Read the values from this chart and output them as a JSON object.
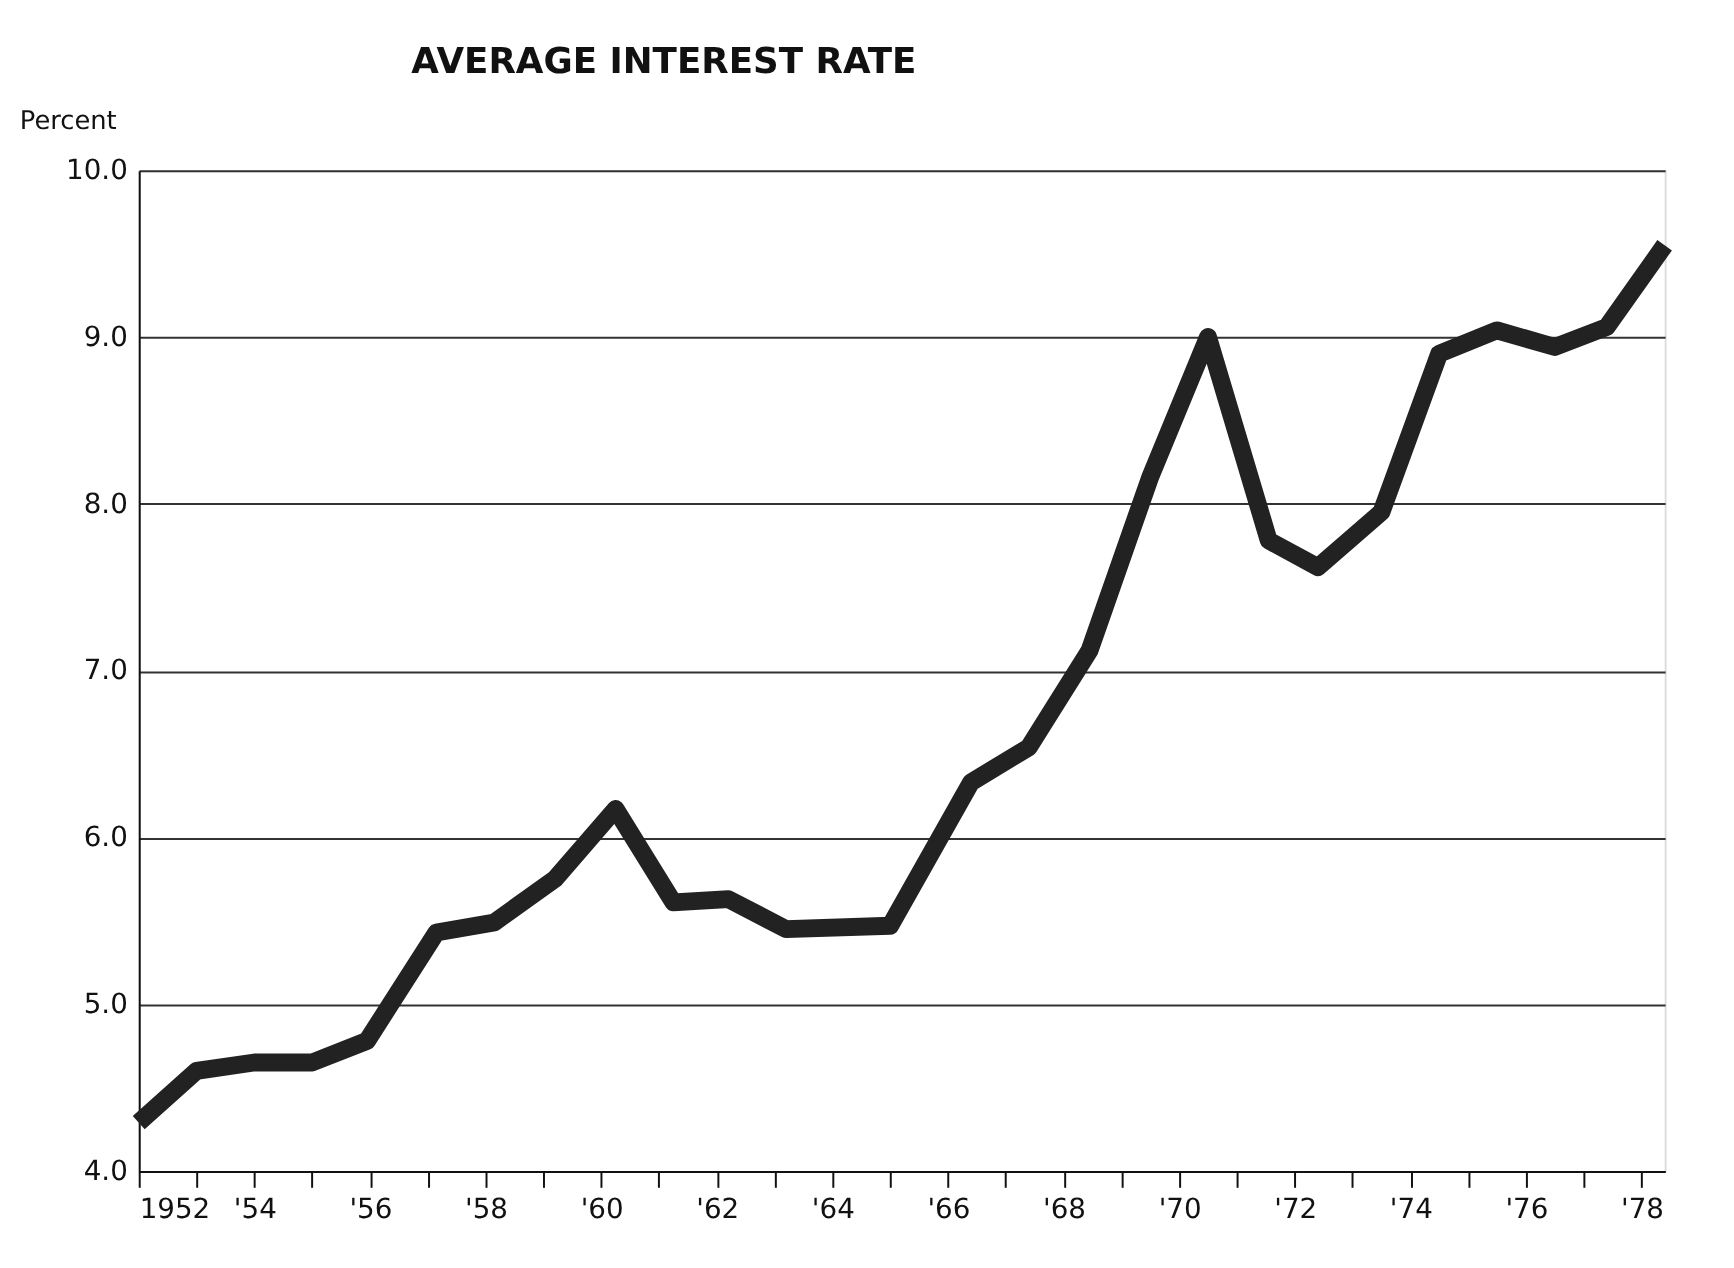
{
  "chart_data": {
    "type": "line",
    "title": "AVERAGE INTEREST RATE",
    "ylabel": "Percent",
    "x": [
      1952.0,
      1953.0,
      1954.0,
      1955.0,
      1955.95,
      1957.15,
      1958.15,
      1959.2,
      1960.25,
      1961.25,
      1962.2,
      1963.2,
      1965.0,
      1966.4,
      1967.4,
      1968.45,
      1969.5,
      1970.5,
      1971.55,
      1972.4,
      1973.5,
      1974.5,
      1975.5,
      1976.5,
      1977.4,
      1978.4
    ],
    "series": [
      {
        "color": "#222222",
        "values": [
          4.29,
          4.6,
          4.65,
          4.65,
          4.78,
          5.43,
          5.49,
          5.75,
          6.17,
          5.61,
          5.63,
          5.45,
          5.47,
          6.33,
          6.54,
          7.12,
          8.16,
          9.0,
          7.78,
          7.62,
          7.95,
          8.9,
          9.04,
          8.94,
          9.06,
          9.55
        ]
      }
    ],
    "xlim": [
      1952,
      1978.4
    ],
    "xticks": [
      {
        "value": 1952,
        "label": "1952"
      },
      {
        "value": 1953,
        "label": null
      },
      {
        "value": 1954,
        "label": "'54"
      },
      {
        "value": 1955,
        "label": null
      },
      {
        "value": 1956,
        "label": "'56"
      },
      {
        "value": 1957,
        "label": null
      },
      {
        "value": 1958,
        "label": "'58"
      },
      {
        "value": 1959,
        "label": null
      },
      {
        "value": 1960,
        "label": "'60"
      },
      {
        "value": 1961,
        "label": null
      },
      {
        "value": 1962,
        "label": "'62"
      },
      {
        "value": 1963,
        "label": null
      },
      {
        "value": 1964,
        "label": "'64"
      },
      {
        "value": 1965,
        "label": null
      },
      {
        "value": 1966,
        "label": "'66"
      },
      {
        "value": 1967,
        "label": null
      },
      {
        "value": 1968,
        "label": "'68"
      },
      {
        "value": 1969,
        "label": null
      },
      {
        "value": 1970,
        "label": "'70"
      },
      {
        "value": 1971,
        "label": null
      },
      {
        "value": 1972,
        "label": "'72"
      },
      {
        "value": 1973,
        "label": null
      },
      {
        "value": 1974,
        "label": "'74"
      },
      {
        "value": 1975,
        "label": null
      },
      {
        "value": 1976,
        "label": "'76"
      },
      {
        "value": 1977,
        "label": null
      },
      {
        "value": 1978,
        "label": "'78"
      }
    ],
    "ylim": [
      4,
      10
    ],
    "yticks": [
      {
        "value": 4,
        "label": "4.0"
      },
      {
        "value": 5,
        "label": "5.0"
      },
      {
        "value": 6,
        "label": "6.0"
      },
      {
        "value": 7,
        "label": "7.0"
      },
      {
        "value": 8,
        "label": "8.0"
      },
      {
        "value": 9,
        "label": "9.0"
      },
      {
        "value": 10,
        "label": "10.0"
      }
    ],
    "grid": "y",
    "marker": "none",
    "line_style": "solid"
  }
}
